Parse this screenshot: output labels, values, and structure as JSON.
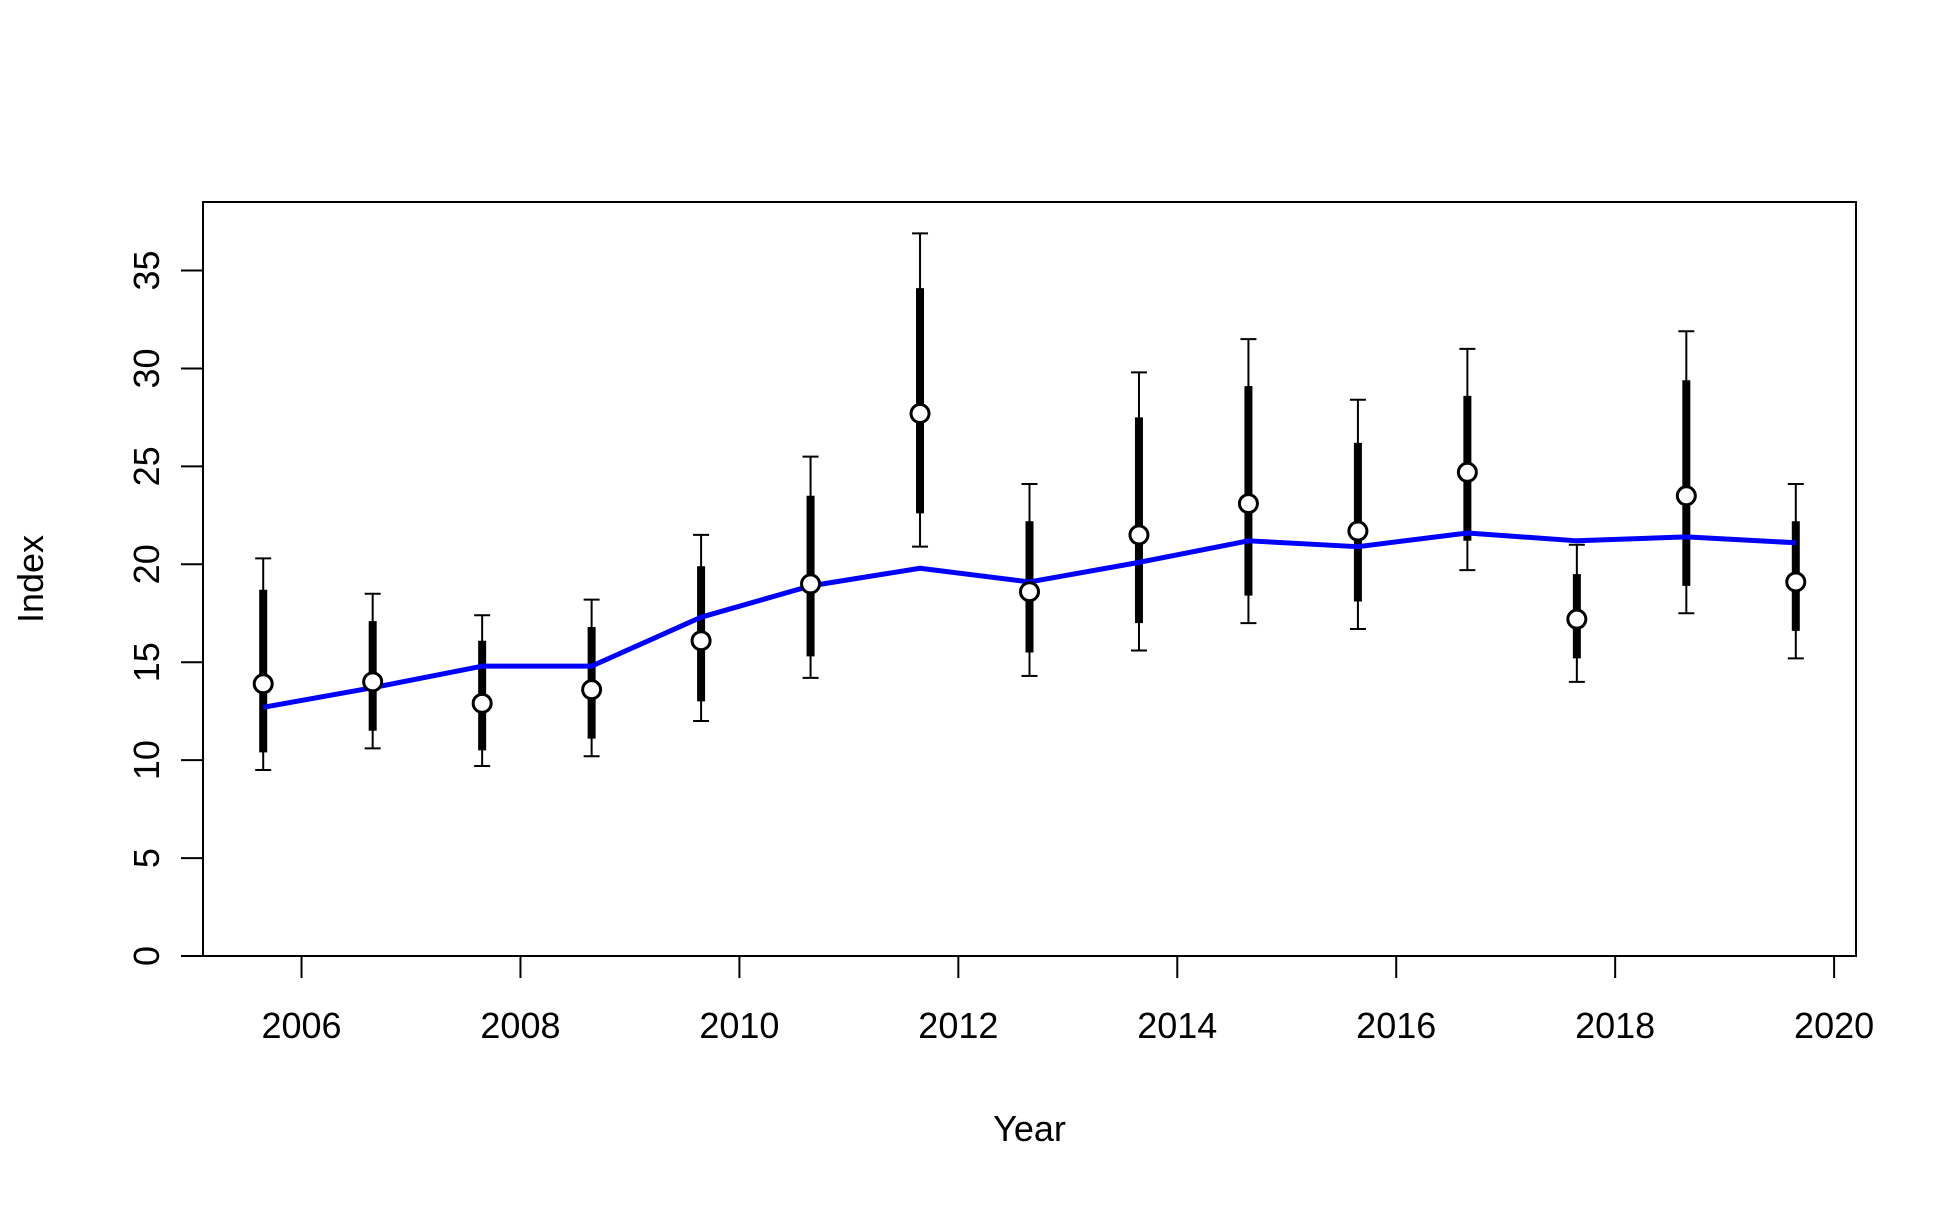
{
  "chart_data": {
    "type": "line",
    "title": "",
    "xlabel": "Year",
    "ylabel": "Index",
    "xlim": [
      2005.1,
      2020.2
    ],
    "ylim": [
      0,
      38.5
    ],
    "grid": false,
    "x_ticks": [
      2006,
      2008,
      2010,
      2012,
      2014,
      2016,
      2018,
      2020
    ],
    "y_ticks": [
      0,
      5,
      10,
      15,
      20,
      25,
      30,
      35
    ],
    "colors": {
      "observed": "#000000",
      "fit": "#0000ff",
      "frame": "#000000"
    },
    "x": [
      2005.65,
      2006.65,
      2007.65,
      2008.65,
      2009.65,
      2010.65,
      2011.65,
      2012.65,
      2013.65,
      2014.65,
      2015.65,
      2016.65,
      2017.65,
      2018.65,
      2019.65
    ],
    "series": [
      {
        "values": [
          13.9,
          14.0,
          12.9,
          13.6,
          16.1,
          19.0,
          27.7,
          18.6,
          21.5,
          23.1,
          21.7,
          24.7,
          17.2,
          23.5,
          19.1
        ],
        "inner_low": [
          10.4,
          11.5,
          10.5,
          11.1,
          13.0,
          15.3,
          22.6,
          15.5,
          17.0,
          18.4,
          18.1,
          21.2,
          15.2,
          18.9,
          16.6
        ],
        "inner_high": [
          18.7,
          17.1,
          16.1,
          16.8,
          19.9,
          23.5,
          34.1,
          22.2,
          27.5,
          29.1,
          26.2,
          28.6,
          19.5,
          29.4,
          22.2
        ],
        "outer_low": [
          9.5,
          10.6,
          9.7,
          10.2,
          12.0,
          14.2,
          20.9,
          14.3,
          15.6,
          17.0,
          16.7,
          19.7,
          14.0,
          17.5,
          15.2
        ],
        "outer_high": [
          20.3,
          18.5,
          17.4,
          18.2,
          21.5,
          25.5,
          36.9,
          24.1,
          29.8,
          31.5,
          28.4,
          31.0,
          21.0,
          31.9,
          24.1
        ]
      },
      {
        "values": [
          12.7,
          13.7,
          14.8,
          14.8,
          17.3,
          18.9,
          19.8,
          19.1,
          20.1,
          21.2,
          20.9,
          21.6,
          21.2,
          21.4,
          21.1
        ]
      }
    ]
  }
}
